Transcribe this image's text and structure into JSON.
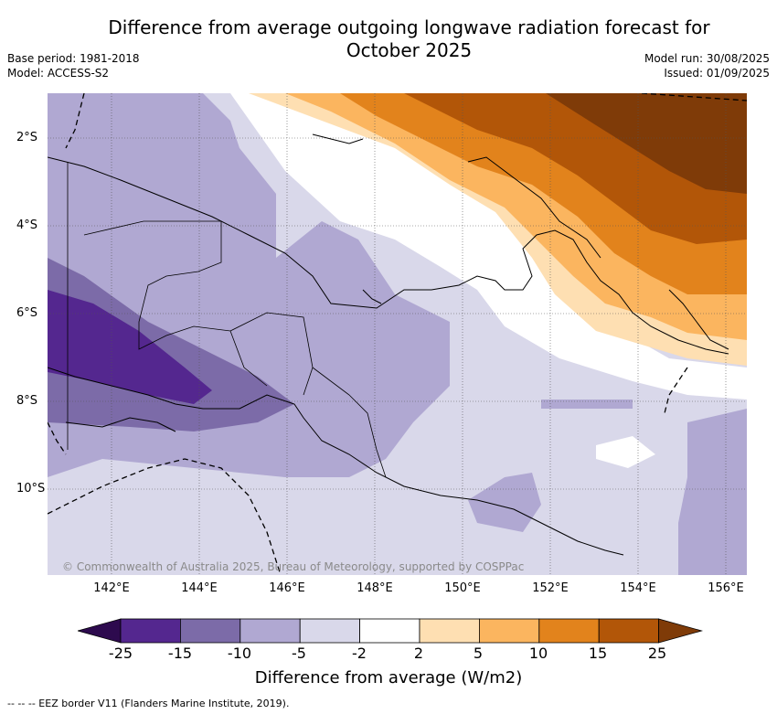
{
  "header": {
    "title": "Difference from average outgoing longwave radiation forecast for October 2025",
    "base_period": "Base period: 1981-2018",
    "model": "Model: ACCESS-S2",
    "model_run": "Model run: 30/08/2025",
    "issued": "Issued: 01/09/2025"
  },
  "map": {
    "lat_labels": [
      "2°S",
      "4°S",
      "6°S",
      "8°S",
      "10°S"
    ],
    "lon_labels": [
      "142°E",
      "144°E",
      "146°E",
      "148°E",
      "150°E",
      "152°E",
      "154°E",
      "156°E"
    ],
    "copyright": "© Commonwealth of Australia 2025, Bureau of Meteorology, supported by COSPPac"
  },
  "colorbar": {
    "labels": [
      "-25",
      "-15",
      "-10",
      "-5",
      "-2",
      "2",
      "5",
      "10",
      "15",
      "25"
    ],
    "colors": [
      "#2d0a4e",
      "#54278f",
      "#7c6ba8",
      "#b0a8d2",
      "#d9d8ea",
      "#ffffff",
      "#fedfb2",
      "#fbb55f",
      "#e2831c",
      "#b25608",
      "#7f3b08"
    ],
    "title": "Difference from average (W/m2)"
  },
  "footer": {
    "eez_note": "-- -- -- EEZ border V11 (Flanders Marine Institute, 2019)."
  }
}
